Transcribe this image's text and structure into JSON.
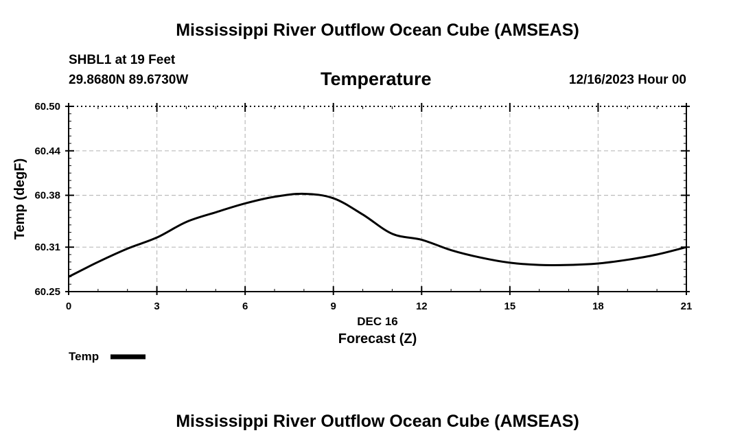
{
  "page": {
    "title_top": "Mississippi River Outflow Ocean Cube (AMSEAS)",
    "title_bottom": "Mississippi River Outflow Ocean Cube (AMSEAS)",
    "station": "SHBL1 at 19 Feet",
    "location": "29.8680N  89.6730W",
    "datetime": "12/16/2023 Hour 00"
  },
  "legend": {
    "label": "Temp"
  },
  "colors": {
    "line": "#000000",
    "grid": "#bbbbbb"
  },
  "chart_data": {
    "type": "line",
    "title": "Temperature",
    "xlabel": "Forecast (Z)",
    "xsublabel": "DEC 16",
    "ylabel": "Temp (degF)",
    "xlim": [
      0,
      21
    ],
    "ylim": [
      60.25,
      60.5
    ],
    "xticks": [
      0,
      3,
      6,
      9,
      12,
      15,
      18,
      21
    ],
    "yticks": [
      60.25,
      60.31,
      60.38,
      60.44,
      60.5
    ],
    "ytick_labels": [
      "60.25",
      "60.31",
      "60.38",
      "60.44",
      "60.50"
    ],
    "grid": true,
    "legend_position": "bottom-left",
    "series": [
      {
        "name": "Temp",
        "x": [
          0,
          1,
          2,
          3,
          4,
          5,
          6,
          7,
          8,
          9,
          10,
          11,
          12,
          13,
          14,
          15,
          16,
          17,
          18,
          19,
          20,
          21
        ],
        "y": [
          60.27,
          60.29,
          60.308,
          60.323,
          60.344,
          60.357,
          60.369,
          60.378,
          60.382,
          60.376,
          60.354,
          60.328,
          60.32,
          60.306,
          60.296,
          60.289,
          60.286,
          60.286,
          60.288,
          60.293,
          60.3,
          60.31
        ]
      }
    ]
  }
}
